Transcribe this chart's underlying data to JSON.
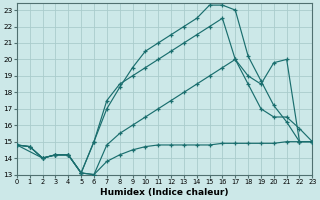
{
  "xlabel": "Humidex (Indice chaleur)",
  "bg_color": "#cce8e8",
  "grid_color": "#aacccc",
  "line_color": "#1a6e6e",
  "xlim": [
    0,
    23
  ],
  "ylim": [
    13,
    23.4
  ],
  "xticks": [
    0,
    1,
    2,
    3,
    4,
    5,
    6,
    7,
    8,
    9,
    10,
    11,
    12,
    13,
    14,
    15,
    16,
    17,
    18,
    19,
    20,
    21,
    22,
    23
  ],
  "yticks": [
    13,
    14,
    15,
    16,
    17,
    18,
    19,
    20,
    21,
    22,
    23
  ],
  "series1_x": [
    0,
    1,
    2,
    3,
    4,
    5,
    6,
    7,
    8,
    9,
    10,
    11,
    12,
    13,
    14,
    15,
    16,
    17,
    18,
    19,
    20,
    21,
    22,
    23
  ],
  "series1_y": [
    14.8,
    14.7,
    14.0,
    14.2,
    14.2,
    13.1,
    13.0,
    13.8,
    14.2,
    14.5,
    14.7,
    14.8,
    14.8,
    14.8,
    14.8,
    14.8,
    14.9,
    14.9,
    14.9,
    14.9,
    14.9,
    15.0,
    15.0,
    15.0
  ],
  "series2_x": [
    0,
    1,
    2,
    3,
    4,
    5,
    6,
    7,
    8,
    9,
    10,
    11,
    12,
    13,
    14,
    15,
    16,
    17,
    18,
    19,
    20,
    21,
    22,
    23
  ],
  "series2_y": [
    14.8,
    14.7,
    14.0,
    14.2,
    14.2,
    13.1,
    15.0,
    17.0,
    18.3,
    19.5,
    20.5,
    21.0,
    21.5,
    22.0,
    22.5,
    23.3,
    23.3,
    23.0,
    20.2,
    18.7,
    17.2,
    16.2,
    15.0,
    15.0
  ],
  "series3_x": [
    0,
    2,
    3,
    4,
    5,
    6,
    7,
    8,
    9,
    10,
    11,
    12,
    13,
    14,
    15,
    16,
    17,
    18,
    19,
    20,
    21,
    22,
    23
  ],
  "series3_y": [
    14.8,
    14.0,
    14.2,
    14.2,
    13.1,
    15.0,
    17.5,
    18.5,
    19.0,
    19.5,
    20.0,
    20.5,
    21.0,
    21.5,
    22.0,
    22.5,
    20.0,
    18.5,
    17.0,
    16.5,
    16.5,
    15.8,
    15.0
  ],
  "series4_x": [
    0,
    1,
    2,
    3,
    4,
    5,
    6,
    7,
    8,
    9,
    10,
    11,
    12,
    13,
    14,
    15,
    16,
    17,
    18,
    19,
    20,
    21,
    22,
    23
  ],
  "series4_y": [
    14.8,
    14.7,
    14.0,
    14.2,
    14.2,
    13.1,
    13.0,
    14.8,
    15.5,
    16.0,
    16.5,
    17.0,
    17.5,
    18.0,
    18.5,
    19.0,
    19.5,
    20.0,
    19.0,
    18.5,
    19.8,
    20.0,
    15.0,
    15.0
  ]
}
